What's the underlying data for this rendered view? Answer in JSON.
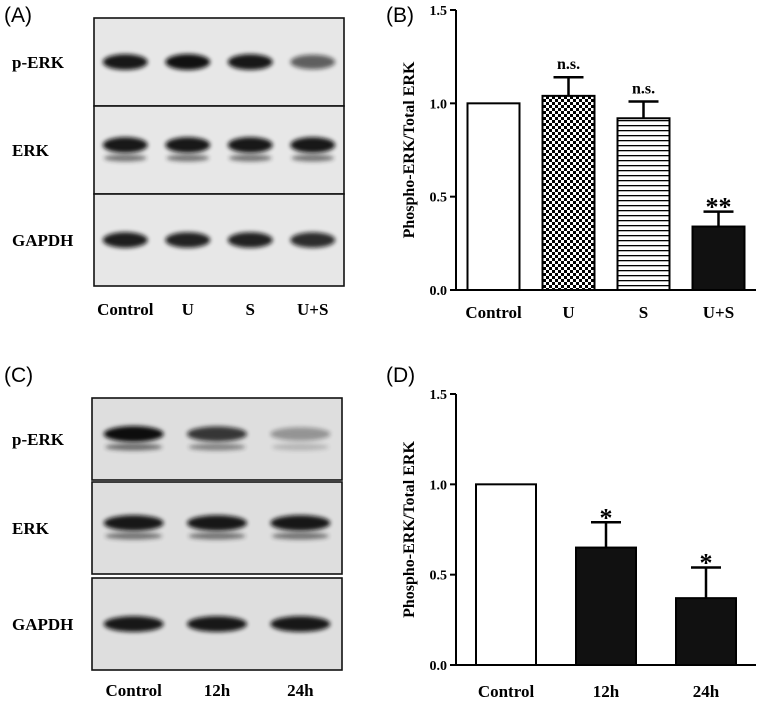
{
  "panels": {
    "a": {
      "label": "(A)",
      "rows": [
        {
          "label": "p-ERK",
          "bands": [
            0.95,
            0.98,
            0.95,
            0.62
          ],
          "double": false
        },
        {
          "label": "ERK",
          "bands": [
            0.95,
            0.95,
            0.95,
            0.95
          ],
          "double": true
        },
        {
          "label": "GAPDH",
          "bands": [
            0.92,
            0.9,
            0.9,
            0.85
          ],
          "double": false
        }
      ],
      "lanes": [
        "Control",
        "U",
        "S",
        "U+S"
      ]
    },
    "c": {
      "label": "(C)",
      "rows": [
        {
          "label": "p-ERK",
          "bands": [
            1.0,
            0.8,
            0.35
          ],
          "double": true
        },
        {
          "label": "ERK",
          "bands": [
            0.95,
            0.95,
            0.95
          ],
          "double": true
        },
        {
          "label": "GAPDH",
          "bands": [
            0.95,
            0.95,
            0.95
          ],
          "double": false
        }
      ],
      "lanes": [
        "Control",
        "12h",
        "24h"
      ]
    }
  },
  "chart_data": [
    {
      "panel_label": "(B)",
      "type": "bar",
      "categories": [
        "Control",
        "U",
        "S",
        "U+S"
      ],
      "values": [
        1.0,
        1.04,
        0.92,
        0.34
      ],
      "errors": [
        0,
        0.1,
        0.09,
        0.08
      ],
      "annotations": [
        "",
        "n.s.",
        "n.s.",
        "**"
      ],
      "fills": [
        "white",
        "checker",
        "hlines",
        "black"
      ],
      "ylabel": "Phospho-ERK/Total ERK",
      "ylim": [
        0,
        1.5
      ],
      "yticks": [
        "0.0",
        "0.5",
        "1.0",
        "1.5"
      ],
      "grid": false
    },
    {
      "panel_label": "(D)",
      "type": "bar",
      "categories": [
        "Control",
        "12h",
        "24h"
      ],
      "values": [
        1.0,
        0.65,
        0.37
      ],
      "errors": [
        0,
        0.14,
        0.17
      ],
      "annotations": [
        "",
        "*",
        "*"
      ],
      "fills": [
        "white",
        "black",
        "black"
      ],
      "ylabel": "Phospho-ERK/Total ERK",
      "ylim": [
        0,
        1.5
      ],
      "yticks": [
        "0.0",
        "0.5",
        "1.0",
        "1.5"
      ],
      "grid": false
    }
  ]
}
